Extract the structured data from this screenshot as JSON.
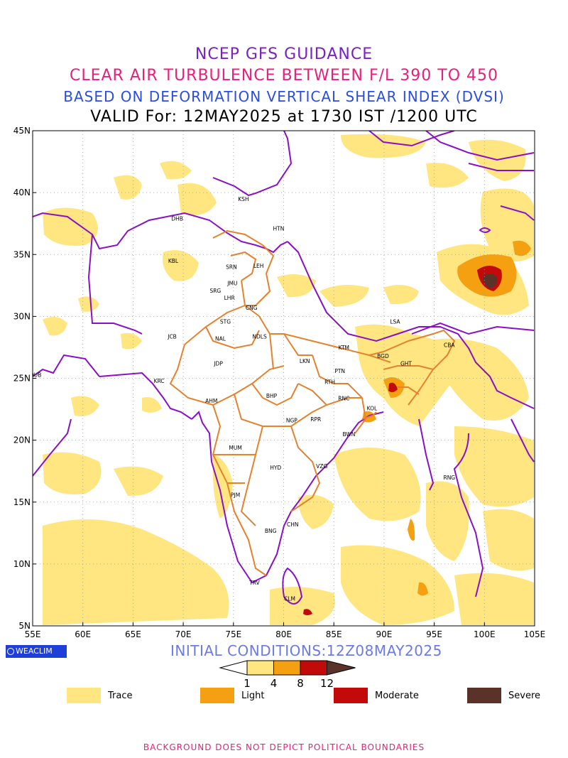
{
  "titles": {
    "line1": "NCEP GFS GUIDANCE",
    "line2": "CLEAR AIR TURBULENCE BETWEEN F/L 390 TO 450",
    "line3": "BASED ON DEFORMATION VERTICAL SHEAR INDEX (DVSI)",
    "line4": "VALID For: 12MAY2025 at 1730 IST /1200 UTC"
  },
  "map": {
    "lat_labels": [
      "45N",
      "40N",
      "35N",
      "30N",
      "25N",
      "20N",
      "15N",
      "10N",
      "5N"
    ],
    "lon_labels": [
      "55E",
      "60E",
      "65E",
      "70E",
      "75E",
      "80E",
      "85E",
      "90E",
      "95E",
      "100E",
      "105E"
    ],
    "extent": {
      "lon_min": 55,
      "lon_max": 105,
      "lat_min": 5,
      "lat_max": 45
    },
    "cities": [
      {
        "name": "KSH",
        "lon": 76.0,
        "lat": 39.5
      },
      {
        "name": "DHB",
        "lon": 69.4,
        "lat": 37.9
      },
      {
        "name": "HTN",
        "lon": 79.5,
        "lat": 37.1
      },
      {
        "name": "KBL",
        "lon": 69.0,
        "lat": 34.5
      },
      {
        "name": "SRN",
        "lon": 74.8,
        "lat": 34.0
      },
      {
        "name": "LEH",
        "lon": 77.5,
        "lat": 34.1
      },
      {
        "name": "JMU",
        "lon": 74.9,
        "lat": 32.7
      },
      {
        "name": "SRG",
        "lon": 73.2,
        "lat": 32.1
      },
      {
        "name": "LHR",
        "lon": 74.6,
        "lat": 31.5
      },
      {
        "name": "CNG",
        "lon": 76.8,
        "lat": 30.7
      },
      {
        "name": "STG",
        "lon": 74.2,
        "lat": 29.6
      },
      {
        "name": "LSA",
        "lon": 91.1,
        "lat": 29.6
      },
      {
        "name": "JCB",
        "lon": 68.9,
        "lat": 28.4
      },
      {
        "name": "NAL",
        "lon": 73.7,
        "lat": 28.2
      },
      {
        "name": "NDLS",
        "lon": 77.6,
        "lat": 28.4
      },
      {
        "name": "KTM",
        "lon": 86.0,
        "lat": 27.5
      },
      {
        "name": "CBA",
        "lon": 96.5,
        "lat": 27.7
      },
      {
        "name": "BGD",
        "lon": 89.9,
        "lat": 26.8
      },
      {
        "name": "JDP",
        "lon": 73.5,
        "lat": 26.2
      },
      {
        "name": "LKN",
        "lon": 82.1,
        "lat": 26.4
      },
      {
        "name": "GHT",
        "lon": 92.2,
        "lat": 26.2
      },
      {
        "name": "PTN",
        "lon": 85.6,
        "lat": 25.6
      },
      {
        "name": "DUB",
        "lon": 55.3,
        "lat": 25.3
      },
      {
        "name": "KRC",
        "lon": 67.6,
        "lat": 24.8
      },
      {
        "name": "RTH",
        "lon": 84.6,
        "lat": 24.7
      },
      {
        "name": "AHM",
        "lon": 72.8,
        "lat": 23.2
      },
      {
        "name": "BHP",
        "lon": 78.8,
        "lat": 23.6
      },
      {
        "name": "RNC",
        "lon": 86.0,
        "lat": 23.4
      },
      {
        "name": "KOL",
        "lon": 88.8,
        "lat": 22.6
      },
      {
        "name": "NGP",
        "lon": 80.8,
        "lat": 21.6
      },
      {
        "name": "RPR",
        "lon": 83.2,
        "lat": 21.7
      },
      {
        "name": "BWN",
        "lon": 86.5,
        "lat": 20.5
      },
      {
        "name": "MUM",
        "lon": 75.2,
        "lat": 19.4
      },
      {
        "name": "HYD",
        "lon": 79.2,
        "lat": 17.8
      },
      {
        "name": "VZG",
        "lon": 83.8,
        "lat": 17.9
      },
      {
        "name": "RNG",
        "lon": 96.5,
        "lat": 17.0
      },
      {
        "name": "PJM",
        "lon": 75.2,
        "lat": 15.6
      },
      {
        "name": "CHN",
        "lon": 80.9,
        "lat": 13.2
      },
      {
        "name": "BNG",
        "lon": 78.7,
        "lat": 12.7
      },
      {
        "name": "TRV",
        "lon": 77.1,
        "lat": 8.5
      },
      {
        "name": "CLM",
        "lon": 80.6,
        "lat": 7.2
      }
    ]
  },
  "init": "INITIAL CONDITIONS:12Z08MAY2025",
  "logo": "WEACLIM",
  "colorbar": {
    "ticks": [
      "1",
      "4",
      "8",
      "12"
    ],
    "colors": [
      "#ffffff",
      "#ffe680",
      "#f5a011",
      "#c20a0a",
      "#5b3228"
    ]
  },
  "legend": [
    {
      "label": "Trace",
      "color": "#ffe680"
    },
    {
      "label": "Light",
      "color": "#f5a011"
    },
    {
      "label": "Moderate",
      "color": "#c20a0a"
    },
    {
      "label": "Severe",
      "color": "#5b3228"
    }
  ],
  "footer": "BACKGROUND DOES NOT DEPICT POLITICAL BOUNDARIES"
}
